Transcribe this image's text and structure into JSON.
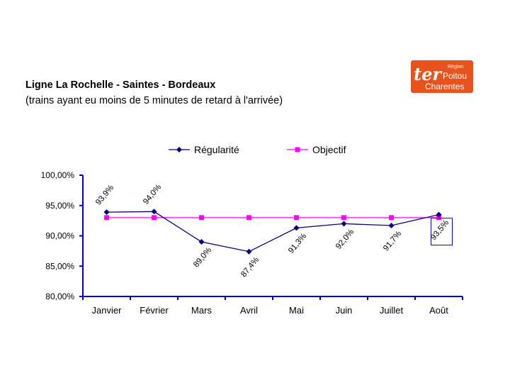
{
  "header": {
    "title": "Ligne La Rochelle - Saintes - Bordeaux",
    "subtitle": "(trains ayant eu moins de 5 minutes de retard à l'arrivée)"
  },
  "logo": {
    "brand": "ter",
    "line1": "Région",
    "line2": "Poitou",
    "line3": "Charentes",
    "color": "#e8531d"
  },
  "chart_data": {
    "type": "line",
    "categories": [
      "Janvier",
      "Février",
      "Mars",
      "Avril",
      "Mai",
      "Juin",
      "Juillet",
      "Août"
    ],
    "series": [
      {
        "name": "Régularité",
        "values": [
          93.9,
          94.0,
          89.0,
          87.4,
          91.3,
          92.0,
          91.7,
          93.5
        ],
        "labels": [
          "93,9%",
          "94,0%",
          "89,0%",
          "87,4%",
          "91,3%",
          "92,0%",
          "91,7%",
          "93,5%"
        ],
        "color": "#000080",
        "marker": "diamond"
      },
      {
        "name": "Objectif",
        "values": [
          93,
          93,
          93,
          93,
          93,
          93,
          93,
          93
        ],
        "color": "#ff00ff",
        "marker": "square"
      }
    ],
    "yticks": [
      "100,00%",
      "95,00%",
      "90,00%",
      "85,00%",
      "80,00%"
    ],
    "ylim": [
      80,
      100
    ],
    "grid": false,
    "legend": "top",
    "axis_color": "#0000cc"
  }
}
